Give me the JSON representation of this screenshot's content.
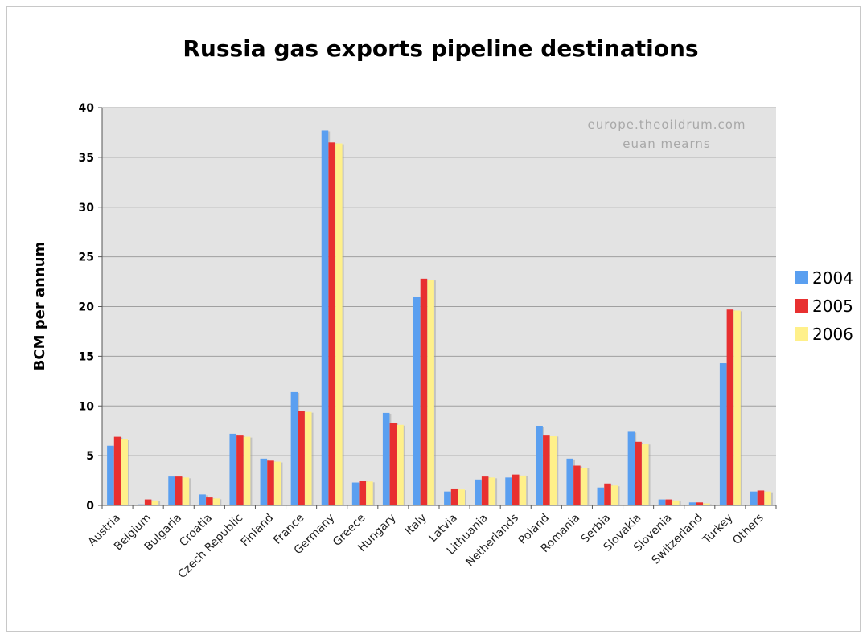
{
  "chart_data": {
    "type": "bar",
    "title": "Russia gas exports pipeline destinations",
    "ylabel": "BCM per annum",
    "xlabel": "",
    "ylim": [
      0,
      40
    ],
    "yticks": [
      0,
      5,
      10,
      15,
      20,
      25,
      30,
      35,
      40
    ],
    "grid": true,
    "legend_placement": "right",
    "watermark": [
      "europe.theoildrum.com",
      "euan mearns"
    ],
    "categories": [
      "Austria",
      "Belgium",
      "Bulgaria",
      "Croatia",
      "Czech Republic",
      "Finland",
      "France",
      "Germany",
      "Greece",
      "Hungary",
      "Italy",
      "Latvia",
      "Lithuania",
      "Netherlands",
      "Poland",
      "Romania",
      "Serbia",
      "Slovakia",
      "Slovenia",
      "Switzerland",
      "Turkey",
      "Others"
    ],
    "series": [
      {
        "name": "2004",
        "color": "#5a9ff0",
        "values": [
          6.0,
          0.1,
          2.9,
          1.1,
          7.2,
          4.7,
          11.4,
          37.7,
          2.3,
          9.3,
          21.0,
          1.4,
          2.6,
          2.8,
          8.0,
          4.7,
          1.8,
          7.4,
          0.6,
          0.3,
          14.3,
          1.4
        ]
      },
      {
        "name": "2005",
        "color": "#e83030",
        "values": [
          6.9,
          0.6,
          2.9,
          0.8,
          7.1,
          4.5,
          9.5,
          36.5,
          2.5,
          8.3,
          22.8,
          1.7,
          2.9,
          3.1,
          7.1,
          4.0,
          2.2,
          6.4,
          0.6,
          0.3,
          19.7,
          1.5
        ]
      },
      {
        "name": "2006",
        "color": "#fff08a",
        "values": [
          6.7,
          0.5,
          2.8,
          0.7,
          6.9,
          4.4,
          9.4,
          36.4,
          2.4,
          8.1,
          22.7,
          1.6,
          2.8,
          3.0,
          7.0,
          3.8,
          2.0,
          6.2,
          0.5,
          0.2,
          19.6,
          1.4
        ]
      }
    ]
  }
}
